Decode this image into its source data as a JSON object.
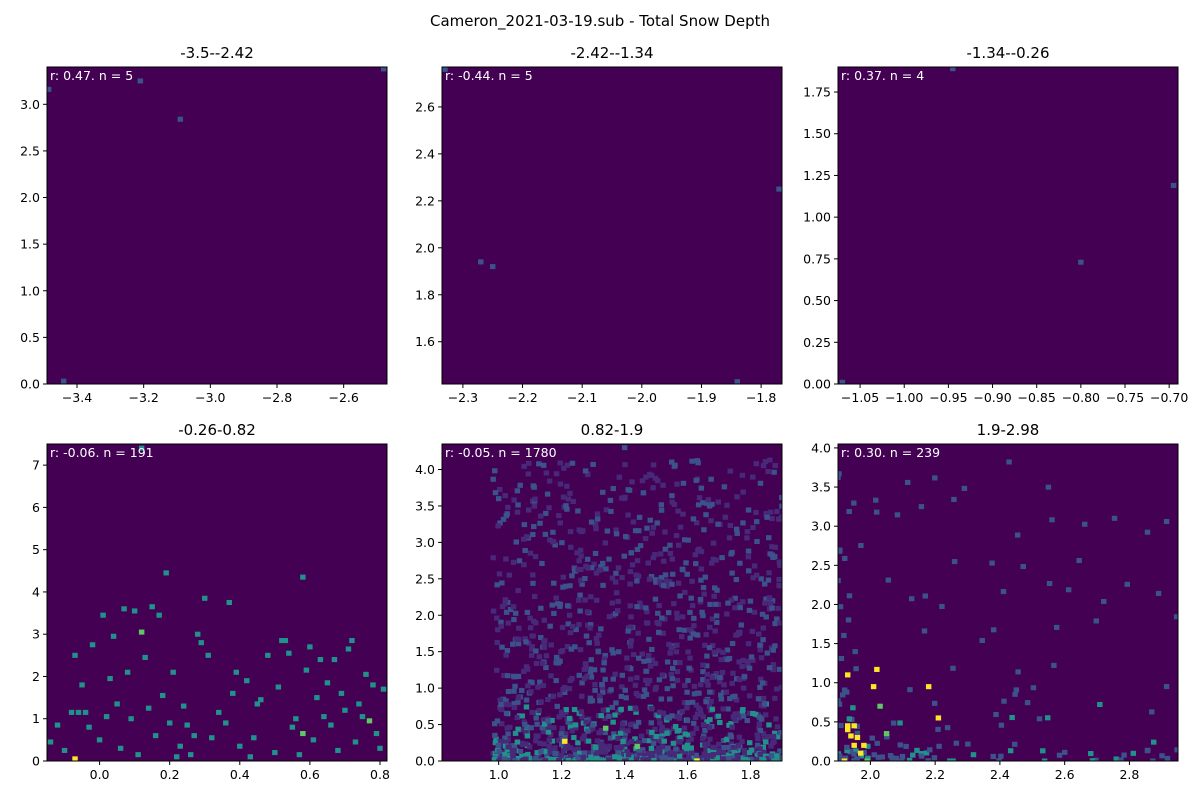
{
  "figure": {
    "suptitle": "Cameron_2021-03-19.sub - Total Snow Depth",
    "colors": {
      "background": "#440154",
      "low": "#3b528b",
      "mid": "#21918c",
      "midhigh": "#5ec962",
      "high": "#fde725",
      "annotation_text": "#ffffff"
    }
  },
  "chart_data": [
    {
      "type": "heatmap",
      "title": "-3.5--2.42",
      "annotation": "r: 0.47. n = 5",
      "xlim": [
        -3.49,
        -2.47
      ],
      "ylim": [
        0,
        3.4
      ],
      "xticks": [
        -3.4,
        -3.2,
        -3.0,
        -2.8,
        -2.6
      ],
      "xtick_labels": [
        "−3.4",
        "−3.2",
        "−3.0",
        "−2.8",
        "−2.6"
      ],
      "yticks": [
        0.0,
        0.5,
        1.0,
        1.5,
        2.0,
        2.5,
        3.0
      ],
      "ytick_labels": [
        "0.0",
        "0.5",
        "1.0",
        "1.5",
        "2.0",
        "2.5",
        "3.0"
      ],
      "points": [
        [
          -3.485,
          3.16,
          1
        ],
        [
          -3.21,
          3.25,
          1
        ],
        [
          -3.09,
          2.84,
          1
        ],
        [
          -2.48,
          3.38,
          1
        ],
        [
          -3.44,
          0.03,
          1
        ]
      ]
    },
    {
      "type": "heatmap",
      "title": "-2.42--1.34",
      "annotation": "r: -0.44. n = 5",
      "xlim": [
        -2.335,
        -1.765
      ],
      "ylim": [
        1.42,
        2.77
      ],
      "xticks": [
        -2.3,
        -2.2,
        -2.1,
        -2.0,
        -1.9,
        -1.8
      ],
      "xtick_labels": [
        "−2.3",
        "−2.2",
        "−2.1",
        "−2.0",
        "−1.9",
        "−1.8"
      ],
      "yticks": [
        1.6,
        1.8,
        2.0,
        2.2,
        2.4,
        2.6
      ],
      "ytick_labels": [
        "1.6",
        "1.8",
        "2.0",
        "2.2",
        "2.4",
        "2.6"
      ],
      "points": [
        [
          -2.33,
          2.76,
          1
        ],
        [
          -2.27,
          1.94,
          1
        ],
        [
          -2.25,
          1.92,
          1
        ],
        [
          -1.77,
          2.25,
          1
        ],
        [
          -1.84,
          1.43,
          1
        ]
      ]
    },
    {
      "type": "heatmap",
      "title": "-1.34--0.26",
      "annotation": "r: 0.37. n = 4",
      "xlim": [
        -1.075,
        -0.69
      ],
      "ylim": [
        0,
        1.9
      ],
      "xticks": [
        -1.05,
        -1.0,
        -0.95,
        -0.9,
        -0.85,
        -0.8,
        -0.75,
        -0.7
      ],
      "xtick_labels": [
        "−1.05",
        "−1.00",
        "−0.95",
        "−0.90",
        "−0.85",
        "−0.80",
        "−0.75",
        "−0.70"
      ],
      "yticks": [
        0.0,
        0.25,
        0.5,
        0.75,
        1.0,
        1.25,
        1.5,
        1.75
      ],
      "ytick_labels": [
        "0.00",
        "0.25",
        "0.50",
        "0.75",
        "1.00",
        "1.25",
        "1.50",
        "1.75"
      ],
      "points": [
        [
          -1.07,
          0.01,
          1
        ],
        [
          -0.945,
          1.89,
          1
        ],
        [
          -0.8,
          0.73,
          1
        ],
        [
          -0.695,
          1.19,
          1
        ]
      ]
    },
    {
      "type": "heatmap",
      "title": "-0.26-0.82",
      "annotation": "r: -0.06. n = 191",
      "xlim": [
        -0.15,
        0.82
      ],
      "ylim": [
        0,
        7.5
      ],
      "xticks": [
        0.0,
        0.2,
        0.4,
        0.6,
        0.8
      ],
      "xtick_labels": [
        "0.0",
        "0.2",
        "0.4",
        "0.6",
        "0.8"
      ],
      "yticks": [
        0,
        1,
        2,
        3,
        4,
        5,
        6,
        7
      ],
      "ytick_labels": [
        "0",
        "1",
        "2",
        "3",
        "4",
        "5",
        "6",
        "7"
      ],
      "points": [
        [
          -0.07,
          0.05,
          4
        ],
        [
          -0.08,
          1.15,
          2
        ],
        [
          -0.06,
          1.15,
          2
        ],
        [
          -0.04,
          1.15,
          2
        ],
        [
          0.12,
          3.05,
          3
        ],
        [
          0.58,
          0.65,
          3
        ],
        [
          0.77,
          0.95,
          3
        ],
        [
          0.79,
          0.65,
          2
        ],
        [
          0.12,
          7.4,
          2
        ],
        [
          -0.14,
          0.45,
          2
        ],
        [
          -0.1,
          0.25,
          2
        ],
        [
          -0.07,
          2.5,
          2
        ],
        [
          -0.05,
          1.8,
          2
        ],
        [
          -0.03,
          0.8,
          2
        ],
        [
          -0.02,
          2.75,
          2
        ],
        [
          0.0,
          0.5,
          2
        ],
        [
          0.01,
          3.45,
          2
        ],
        [
          0.03,
          1.95,
          2
        ],
        [
          0.04,
          2.95,
          2
        ],
        [
          0.05,
          1.35,
          2
        ],
        [
          0.06,
          0.3,
          2
        ],
        [
          0.07,
          3.6,
          2
        ],
        [
          0.08,
          2.1,
          2
        ],
        [
          0.09,
          1.0,
          2
        ],
        [
          0.1,
          3.55,
          2
        ],
        [
          0.11,
          0.15,
          2
        ],
        [
          0.13,
          2.45,
          2
        ],
        [
          0.14,
          1.25,
          2
        ],
        [
          0.15,
          3.65,
          2
        ],
        [
          0.16,
          0.6,
          2
        ],
        [
          0.17,
          3.45,
          2
        ],
        [
          0.18,
          1.55,
          2
        ],
        [
          0.19,
          4.45,
          2
        ],
        [
          0.2,
          0.9,
          2
        ],
        [
          0.21,
          2.1,
          2
        ],
        [
          0.22,
          0.1,
          2
        ],
        [
          0.23,
          0.35,
          2
        ],
        [
          0.24,
          1.3,
          2
        ],
        [
          0.25,
          0.85,
          2
        ],
        [
          0.26,
          0.15,
          2
        ],
        [
          0.28,
          3.0,
          2
        ],
        [
          0.29,
          2.8,
          2
        ],
        [
          0.3,
          3.85,
          2
        ],
        [
          0.31,
          2.5,
          2
        ],
        [
          0.32,
          0.55,
          2
        ],
        [
          0.34,
          1.15,
          2
        ],
        [
          0.36,
          0.9,
          2
        ],
        [
          0.37,
          3.75,
          2
        ],
        [
          0.38,
          1.6,
          2
        ],
        [
          0.39,
          2.1,
          2
        ],
        [
          0.4,
          0.35,
          2
        ],
        [
          0.42,
          1.9,
          2
        ],
        [
          0.43,
          0.1,
          2
        ],
        [
          0.45,
          1.35,
          2
        ],
        [
          0.46,
          1.45,
          2
        ],
        [
          0.48,
          2.5,
          2
        ],
        [
          0.5,
          0.2,
          2
        ],
        [
          0.51,
          1.75,
          2
        ],
        [
          0.52,
          2.85,
          2
        ],
        [
          0.53,
          2.85,
          2
        ],
        [
          0.54,
          2.55,
          2
        ],
        [
          0.55,
          0.8,
          2
        ],
        [
          0.56,
          1.0,
          2
        ],
        [
          0.57,
          0.15,
          2
        ],
        [
          0.58,
          4.35,
          2
        ],
        [
          0.59,
          2.15,
          2
        ],
        [
          0.61,
          0.5,
          2
        ],
        [
          0.62,
          1.5,
          2
        ],
        [
          0.63,
          2.4,
          2
        ],
        [
          0.64,
          1.05,
          2
        ],
        [
          0.65,
          1.85,
          2
        ],
        [
          0.66,
          0.85,
          2
        ],
        [
          0.67,
          2.4,
          2
        ],
        [
          0.68,
          0.25,
          2
        ],
        [
          0.69,
          1.6,
          2
        ],
        [
          0.7,
          1.2,
          2
        ],
        [
          0.71,
          2.65,
          2
        ],
        [
          0.72,
          2.85,
          2
        ],
        [
          0.73,
          0.45,
          2
        ],
        [
          0.74,
          1.35,
          2
        ],
        [
          0.75,
          1.05,
          2
        ],
        [
          0.76,
          2.05,
          2
        ],
        [
          0.78,
          1.8,
          2
        ],
        [
          0.8,
          0.3,
          2
        ],
        [
          0.81,
          1.7,
          2
        ],
        [
          -0.12,
          0.85,
          2
        ],
        [
          0.02,
          1.05,
          2
        ],
        [
          0.27,
          0.6,
          2
        ],
        [
          0.44,
          0.55,
          2
        ],
        [
          0.6,
          2.7,
          2
        ]
      ]
    },
    {
      "type": "heatmap",
      "title": "0.82-1.9",
      "annotation": "r: -0.05. n = 1780",
      "xlim": [
        0.82,
        1.9
      ],
      "ylim": [
        0,
        4.35
      ],
      "xticks": [
        1.0,
        1.2,
        1.4,
        1.6,
        1.8
      ],
      "xtick_labels": [
        "1.0",
        "1.2",
        "1.4",
        "1.6",
        "1.8"
      ],
      "yticks": [
        0.0,
        0.5,
        1.0,
        1.5,
        2.0,
        2.5,
        3.0,
        3.5,
        4.0
      ],
      "ytick_labels": [
        "0.0",
        "0.5",
        "1.0",
        "1.5",
        "2.0",
        "2.5",
        "3.0",
        "3.5",
        "4.0"
      ],
      "points": [
        [
          1.21,
          0.27,
          4
        ],
        [
          1.63,
          0.0,
          4
        ],
        [
          1.44,
          0.2,
          3
        ],
        [
          1.34,
          0.45,
          3
        ],
        [
          1.4,
          4.3,
          1
        ],
        [
          1.0,
          3.6,
          1
        ],
        [
          1.67,
          3.5,
          1
        ]
      ],
      "density_seed": 7,
      "density_cells": 1600
    },
    {
      "type": "heatmap",
      "title": "1.9-2.98",
      "annotation": "r: 0.30. n = 239",
      "xlim": [
        1.9,
        2.95
      ],
      "ylim": [
        0,
        4.05
      ],
      "xticks": [
        2.0,
        2.2,
        2.4,
        2.6,
        2.8
      ],
      "xtick_labels": [
        "2.0",
        "2.2",
        "2.4",
        "2.6",
        "2.8"
      ],
      "yticks": [
        0.0,
        0.5,
        1.0,
        1.5,
        2.0,
        2.5,
        3.0,
        3.5,
        4.0
      ],
      "ytick_labels": [
        "0.0",
        "0.5",
        "1.0",
        "1.5",
        "2.0",
        "2.5",
        "3.0",
        "3.5",
        "4.0"
      ],
      "points": [
        [
          1.92,
          0.0,
          4
        ],
        [
          1.93,
          0.4,
          4
        ],
        [
          1.93,
          0.45,
          4
        ],
        [
          1.94,
          0.32,
          4
        ],
        [
          1.95,
          0.2,
          4
        ],
        [
          1.95,
          0.45,
          4
        ],
        [
          1.96,
          0.3,
          4
        ],
        [
          1.97,
          0.1,
          4
        ],
        [
          1.98,
          0.2,
          4
        ],
        [
          1.93,
          1.1,
          4
        ],
        [
          2.01,
          0.95,
          4
        ],
        [
          2.02,
          1.17,
          4
        ],
        [
          2.18,
          0.95,
          4
        ],
        [
          2.21,
          0.55,
          4
        ],
        [
          2.03,
          0.7,
          3
        ],
        [
          1.99,
          0.0,
          3
        ],
        [
          2.05,
          0.35,
          3
        ]
      ],
      "density_seed": 13,
      "density_cells": 160
    }
  ]
}
